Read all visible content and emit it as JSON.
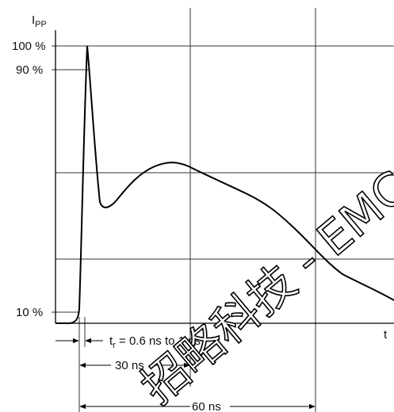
{
  "y_axis_label": {
    "main": "I",
    "sub": "PP"
  },
  "x_axis_label": "t",
  "y_ticks": {
    "p100": "100 %",
    "p90": "90 %",
    "p10": "10 %"
  },
  "annotations": {
    "rise_main": "t",
    "rise_sub": "r",
    "rise_rest": " = 0.6 ns to 1 ns",
    "t30": "30 ns",
    "t60": "60 ns"
  },
  "watermark": "招略科技 - EMC",
  "colors": {
    "line": "#000000",
    "grid": "#333333",
    "background": "#ffffff"
  }
}
